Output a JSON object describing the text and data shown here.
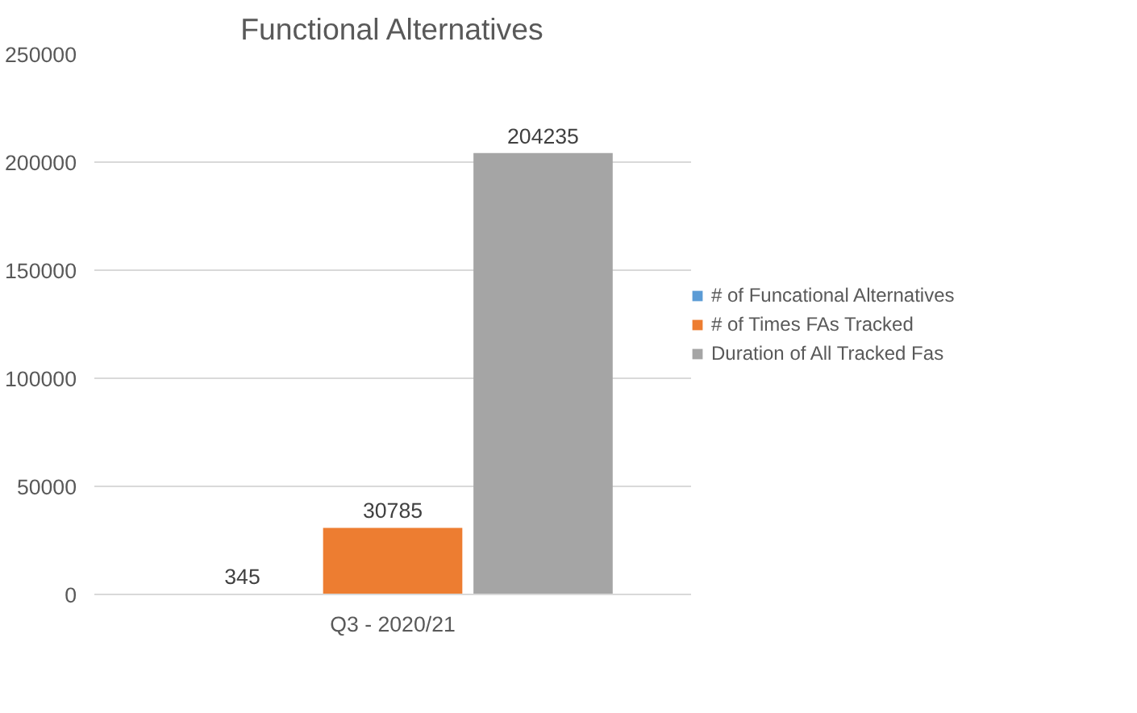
{
  "chart_data": {
    "type": "bar",
    "title": "Functional Alternatives",
    "categories": [
      "Q3 - 2020/21"
    ],
    "series": [
      {
        "name": "# of Funcational Alternatives",
        "color": "#5b9bd5",
        "values": [
          345
        ]
      },
      {
        "name": "# of Times FAs Tracked",
        "color": "#ed7d31",
        "values": [
          30785
        ]
      },
      {
        "name": "Duration of All Tracked Fas",
        "color": "#a5a5a5",
        "values": [
          204235
        ]
      }
    ],
    "ylim": [
      0,
      250000
    ],
    "yticks": [
      0,
      50000,
      100000,
      150000,
      200000,
      250000
    ],
    "grid": "y",
    "legend": "right",
    "data_labels": true
  }
}
